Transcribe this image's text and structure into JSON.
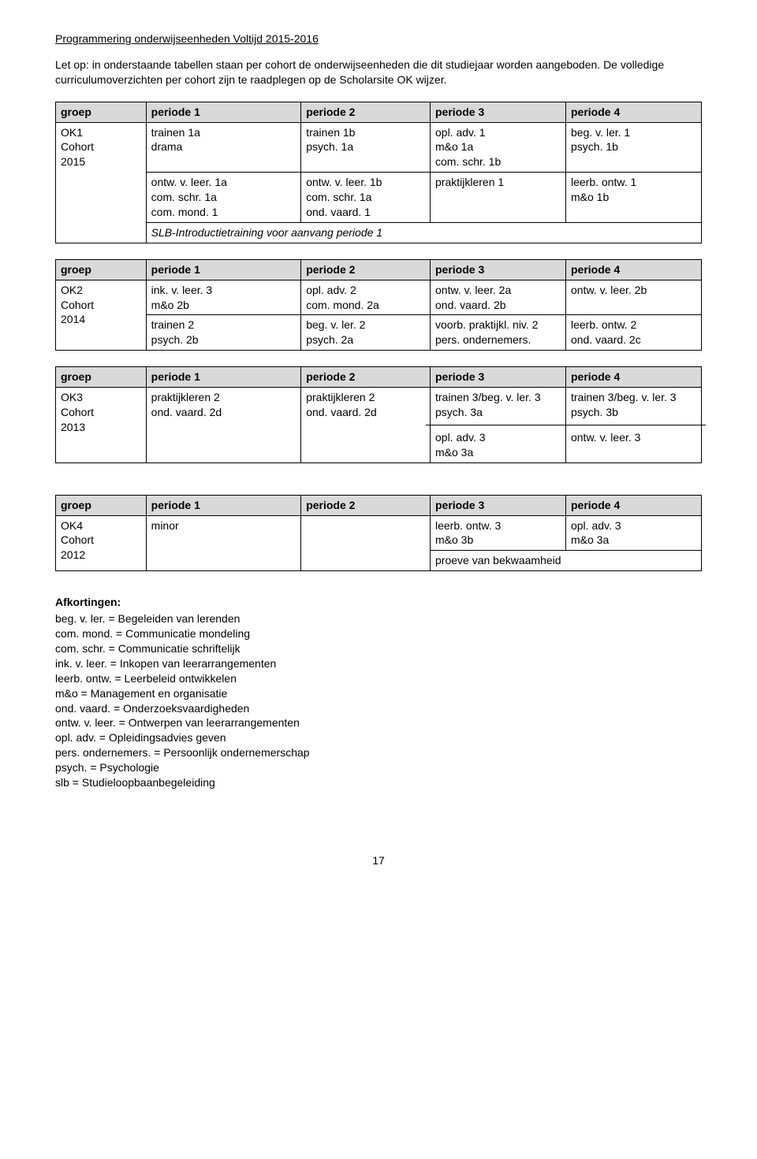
{
  "title": "Programmering onderwijseenheden Voltijd 2015-2016",
  "intro": "Let op: in onderstaande tabellen staan per cohort de onderwijseenheden die dit studiejaar worden aangeboden. De volledige curriculumoverzichten per cohort zijn te raadplegen op de Scholarsite OK wijzer.",
  "headers": {
    "groep": "groep",
    "p1": "periode 1",
    "p2": "periode 2",
    "p3": "periode 3",
    "p4": "periode 4"
  },
  "t1": {
    "label": "OK1\nCohort\n2015",
    "r1": {
      "c1": "trainen 1a\ndrama",
      "c2": "trainen 1b\npsych. 1a",
      "c3": "opl. adv. 1\nm&o 1a\ncom. schr. 1b",
      "c4": "beg. v. ler. 1\npsych. 1b"
    },
    "r2": {
      "c1": "ontw. v. leer. 1a\ncom. schr. 1a\ncom. mond. 1",
      "c2": "ontw. v. leer. 1b\ncom. schr. 1a\nond. vaard. 1",
      "c3": "praktijkleren 1",
      "c4": "leerb. ontw. 1\nm&o 1b"
    },
    "r3": {
      "c1": "SLB-Introductietraining voor aanvang periode 1"
    }
  },
  "t2": {
    "label": "OK2\nCohort\n2014",
    "r1": {
      "c1": "ink. v. leer. 3\nm&o 2b",
      "c2": "opl. adv. 2\ncom. mond. 2a",
      "c3": "ontw. v. leer. 2a\nond. vaard. 2b",
      "c4": "ontw. v. leer. 2b"
    },
    "r2": {
      "c1": "trainen 2\npsych. 2b",
      "c2": "beg. v. ler. 2\npsych. 2a",
      "c3": "voorb. praktijkl. niv. 2\npers. ondernemers.",
      "c4": "leerb. ontw. 2\nond. vaard. 2c"
    }
  },
  "t3": {
    "label": "OK3\nCohort\n2013",
    "r1": {
      "c1": "praktijkleren 2\nond. vaard. 2d",
      "c2": "praktijkleren 2\nond. vaard. 2d",
      "c3a": "trainen 3/beg. v. ler. 3\npsych. 3a",
      "c4a": "trainen 3/beg. v. ler. 3\npsych. 3b",
      "c3b": "opl. adv. 3\nm&o 3a",
      "c4b": "ontw. v. leer. 3"
    }
  },
  "t4": {
    "label": "OK4\nCohort\n2012",
    "r1": {
      "c1": "minor",
      "c3": "leerb. ontw. 3\nm&o 3b",
      "c4": "opl. adv. 3\nm&o 3a",
      "c34": "proeve van bekwaamheid"
    }
  },
  "abbrev": {
    "title": "Afkortingen:",
    "lines": [
      "beg. v. ler. = Begeleiden van lerenden",
      "com. mond. = Communicatie mondeling",
      "com. schr. = Communicatie schriftelijk",
      "ink. v. leer. = Inkopen van leerarrangementen",
      "leerb. ontw. = Leerbeleid ontwikkelen",
      "m&o = Management en organisatie",
      "ond. vaard. = Onderzoeksvaardigheden",
      "ontw. v. leer. = Ontwerpen van leerarrangementen",
      "opl. adv. = Opleidingsadvies geven",
      "pers. ondernemers. = Persoonlijk ondernemerschap",
      "psych. = Psychologie",
      "slb = Studieloopbaanbegeleiding"
    ]
  },
  "pagenum": "17"
}
